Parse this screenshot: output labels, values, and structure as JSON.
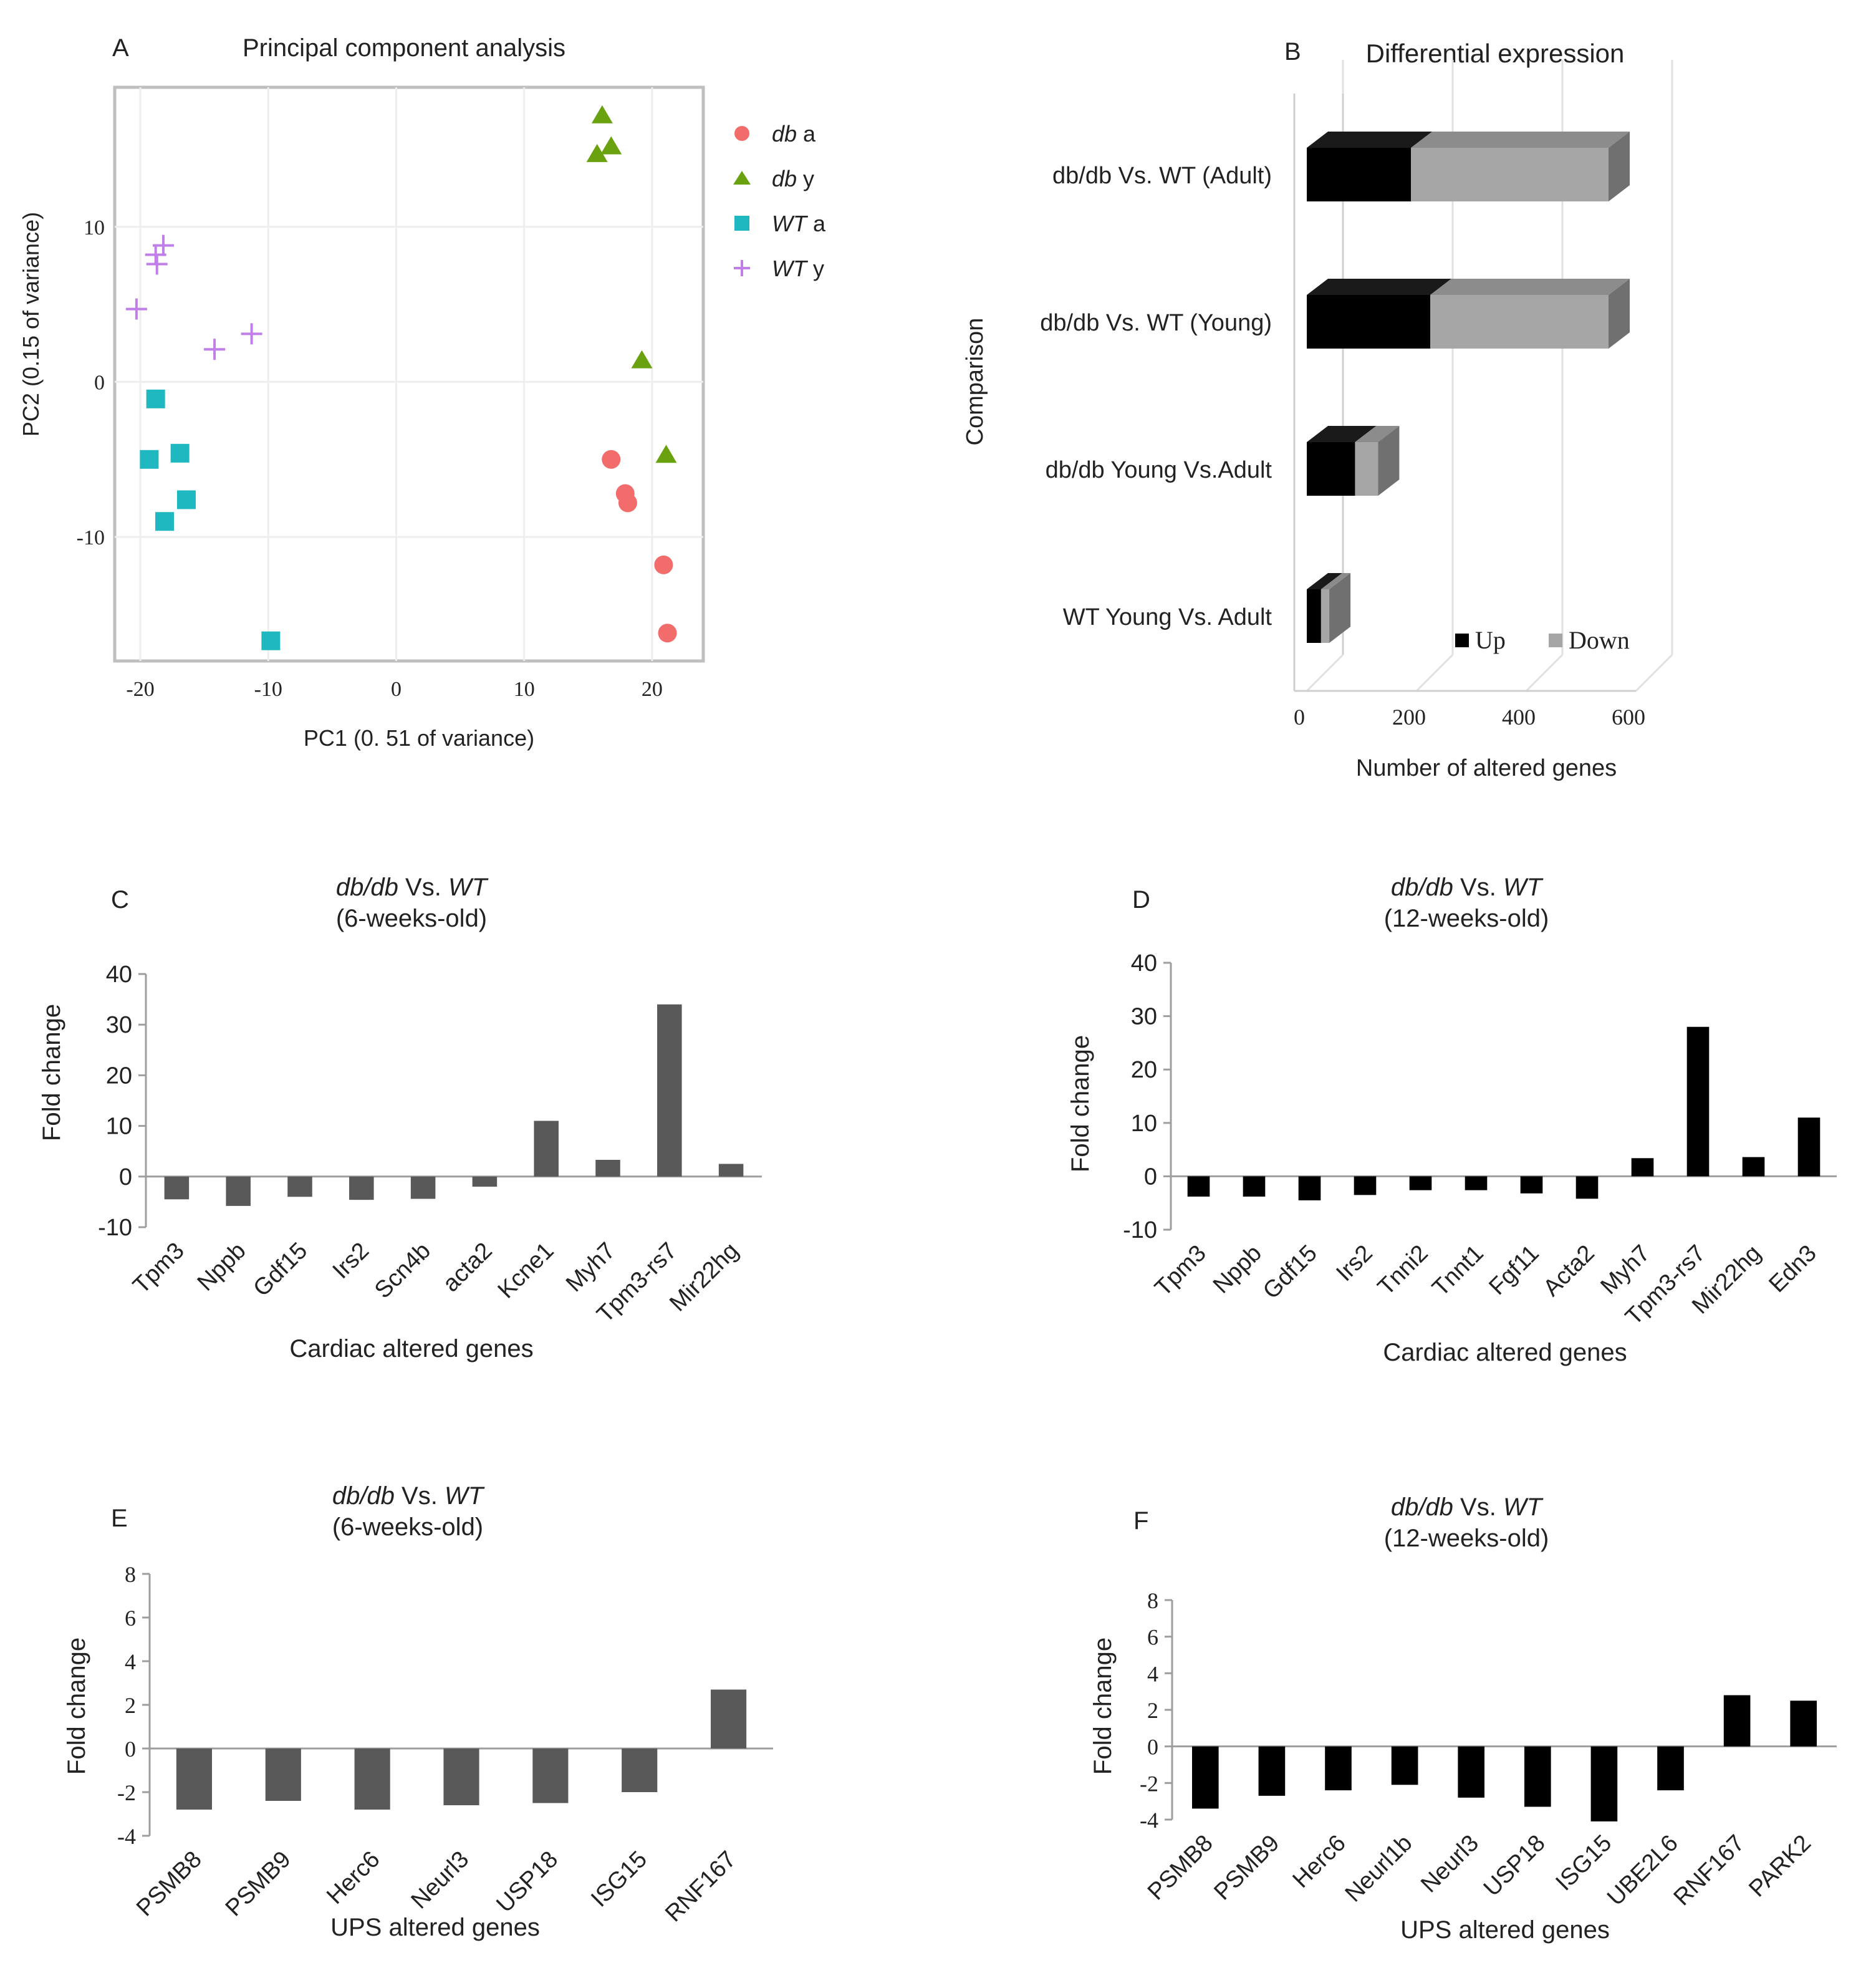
{
  "colors": {
    "db_a": "#f26c6c",
    "db_y": "#6aa10f",
    "WT_a": "#1fb7c0",
    "WT_y": "#c07fe8",
    "up": "#000000",
    "down": "#a6a6a6",
    "bar_grey": "#595959",
    "bar_black": "#000000"
  },
  "chart_data": [
    {
      "panel": "A",
      "type": "scatter",
      "title": "Principal component analysis",
      "xlabel": "PC1 (0. 51 of variance)",
      "ylabel": "PC2 (0.15 of variance)",
      "xlim": [
        -22,
        24
      ],
      "ylim": [
        -18,
        19
      ],
      "xticks": [
        "-20",
        "-10",
        "0",
        "10",
        "20"
      ],
      "xtick_values": [
        -20,
        -10,
        0,
        10,
        20
      ],
      "yticks": [
        "-10",
        "0",
        "10"
      ],
      "ytick_values": [
        -10,
        0,
        10
      ],
      "legend_position": "right",
      "series": [
        {
          "name_italic": "db",
          "name_rest": " a",
          "marker": "circle",
          "color_key": "db_a",
          "x": [
            16.8,
            17.9,
            18.1,
            20.9,
            21.2
          ],
          "y": [
            -5.0,
            -7.2,
            -7.8,
            -11.8,
            -16.2
          ]
        },
        {
          "name_italic": "db",
          "name_rest": " y",
          "marker": "triangle",
          "color_key": "db_y",
          "x": [
            16.1,
            16.8,
            15.7,
            19.2,
            21.1
          ],
          "y": [
            17.2,
            15.2,
            14.7,
            1.4,
            -4.7
          ]
        },
        {
          "name_italic": "WT",
          "name_rest": " a",
          "marker": "square",
          "color_key": "WT_a",
          "x": [
            -18.8,
            -19.3,
            -16.9,
            -18.1,
            -16.4,
            -9.8
          ],
          "y": [
            -1.1,
            -5.0,
            -4.6,
            -9.0,
            -7.6,
            -16.7
          ]
        },
        {
          "name_italic": "WT",
          "name_rest": " y",
          "marker": "plus",
          "color_key": "WT_y",
          "x": [
            -18.8,
            -18.7,
            -18.2,
            -20.3,
            -14.2,
            -11.3
          ],
          "y": [
            8.2,
            7.6,
            8.8,
            4.7,
            2.1,
            3.1
          ]
        }
      ]
    },
    {
      "panel": "B",
      "type": "bar",
      "orientation": "horizontal-stacked-3d",
      "title": "Differential expression",
      "xlabel": "Number of altered genes",
      "ylabel": "Comparison",
      "xlim": [
        0,
        600
      ],
      "xticks": [
        "0",
        "200",
        "400",
        "600"
      ],
      "xtick_values": [
        0,
        200,
        400,
        600
      ],
      "categories": [
        "db/db Vs. WT (Adult)",
        "db/db Vs. WT (Young)",
        "db/db Young Vs.Adult",
        "WT Young Vs. Adult"
      ],
      "series": [
        {
          "name": "Up",
          "color_key": "up",
          "values": [
            190,
            225,
            88,
            26
          ]
        },
        {
          "name": "Down",
          "color_key": "down",
          "values": [
            360,
            325,
            42,
            15
          ]
        }
      ],
      "legend_position": "bottom-right"
    },
    {
      "panel": "C",
      "type": "bar",
      "title_italic_a": "db/db",
      "title_mid": " Vs. ",
      "title_italic_b": "WT",
      "subtitle": "(6-weeks-old)",
      "xlabel": "Cardiac altered genes",
      "ylabel": "Fold change",
      "ylim": [
        -10,
        40
      ],
      "yticks": [
        "-10",
        "0",
        "10",
        "20",
        "30",
        "40"
      ],
      "ytick_values": [
        -10,
        0,
        10,
        20,
        30,
        40
      ],
      "color_key": "bar_grey",
      "categories": [
        "Tpm3",
        "Nppb",
        "Gdf15",
        "Irs2",
        "Scn4b",
        "acta2",
        "Kcne1",
        "Myh7",
        "Tpm3-rs7",
        "Mir22hg"
      ],
      "values": [
        -4.5,
        -5.8,
        -4.0,
        -4.6,
        -4.4,
        -2.0,
        11.0,
        3.3,
        34.0,
        2.5
      ]
    },
    {
      "panel": "D",
      "type": "bar",
      "title_italic_a": "db/db",
      "title_mid": " Vs. ",
      "title_italic_b": "WT",
      "subtitle": "(12-weeks-old)",
      "xlabel": "Cardiac altered genes",
      "ylabel": "Fold change",
      "ylim": [
        -10,
        40
      ],
      "yticks": [
        "-10",
        "0",
        "10",
        "20",
        "30",
        "40"
      ],
      "ytick_values": [
        -10,
        0,
        10,
        20,
        30,
        40
      ],
      "color_key": "bar_black",
      "categories": [
        "Tpm3",
        "Nppb",
        "Gdf15",
        "Irs2",
        "Tnni2",
        "Tnnt1",
        "Fgf11",
        "Acta2",
        "Myh7",
        "Tpm3-rs7",
        "Mir22hg",
        "Edn3"
      ],
      "values": [
        -3.8,
        -3.8,
        -4.5,
        -3.5,
        -2.6,
        -2.6,
        -3.2,
        -4.2,
        3.4,
        28.0,
        3.6,
        11.0
      ]
    },
    {
      "panel": "E",
      "type": "bar",
      "title_italic_a": "db/db",
      "title_mid": " Vs. ",
      "title_italic_b": "WT",
      "subtitle": "(6-weeks-old)",
      "xlabel": "UPS altered genes",
      "ylabel": "Fold change",
      "ylim": [
        -4,
        8
      ],
      "yticks": [
        "-4",
        "-2",
        "0",
        "2",
        "4",
        "6",
        "8"
      ],
      "ytick_values": [
        -4,
        -2,
        0,
        2,
        4,
        6,
        8
      ],
      "color_key": "bar_grey",
      "categories": [
        "PSMB8",
        "PSMB9",
        "Herc6",
        "Neurl3",
        "USP18",
        "ISG15",
        "RNF167"
      ],
      "values": [
        -2.8,
        -2.4,
        -2.8,
        -2.6,
        -2.5,
        -2.0,
        2.7
      ]
    },
    {
      "panel": "F",
      "type": "bar",
      "title_italic_a": "db/db",
      "title_mid": " Vs. ",
      "title_italic_b": "WT",
      "subtitle": "(12-weeks-old)",
      "xlabel": "UPS altered genes",
      "ylabel": "Fold change",
      "ylim": [
        -4,
        8
      ],
      "yticks": [
        "-4",
        "-2",
        "0",
        "2",
        "4",
        "6",
        "8"
      ],
      "ytick_values": [
        -4,
        -2,
        0,
        2,
        4,
        6,
        8
      ],
      "color_key": "bar_black",
      "categories": [
        "PSMB8",
        "PSMB9",
        "Herc6",
        "Neurl1b",
        "Neurl3",
        "USP18",
        "ISG15",
        "UBE2L6",
        "RNF167",
        "PARK2"
      ],
      "values": [
        -3.4,
        -2.7,
        -2.4,
        -2.1,
        -2.8,
        -3.3,
        -4.1,
        -2.4,
        2.8,
        2.5
      ]
    }
  ]
}
